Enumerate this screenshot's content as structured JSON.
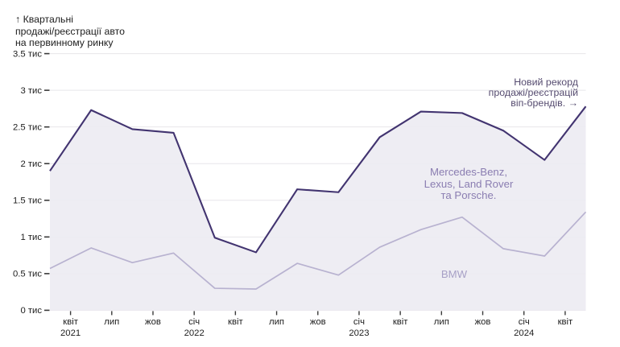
{
  "title": {
    "lines": [
      "↑ Квартальні",
      "продажі/реєстрації авто",
      "на первинному ринку"
    ]
  },
  "annotations": {
    "record": {
      "lines": [
        "Новий рекорд",
        "продажі/реєстрацій",
        "віп-брендів. →"
      ]
    },
    "series_labels": {
      "mercedes": {
        "lines": [
          "Mercedes-Benz,",
          "Lexus, Land Rover",
          "та Porsche."
        ]
      },
      "bmw": {
        "lines": [
          "BMW"
        ]
      }
    }
  },
  "chart_data": {
    "type": "area",
    "x_tick_labels": [
      {
        "label": "квіт",
        "year": "2021"
      },
      {
        "label": "лип"
      },
      {
        "label": "жов"
      },
      {
        "label": "січ",
        "year": "2022"
      },
      {
        "label": "квіт"
      },
      {
        "label": "лип"
      },
      {
        "label": "жов"
      },
      {
        "label": "січ",
        "year": "2023"
      },
      {
        "label": "квіт"
      },
      {
        "label": "лип"
      },
      {
        "label": "жов"
      },
      {
        "label": "січ",
        "year": "2024"
      },
      {
        "label": "квіт"
      }
    ],
    "y_tick_labels": [
      "0 тис",
      "0.5 тис",
      "1 тис",
      "1.5 тис",
      "2 тис",
      "2.5 тис",
      "3 тис",
      "3.5 тис"
    ],
    "y_tick_values": [
      0,
      0.5,
      1,
      1.5,
      2,
      2.5,
      3,
      3.5
    ],
    "ylim": [
      0,
      3.5
    ],
    "grid": "horizontal",
    "series": [
      {
        "name": "Mercedes-Benz, Lexus, Land Rover та Porsche.",
        "values": [
          1.9,
          2.73,
          2.47,
          2.42,
          0.99,
          0.79,
          1.65,
          1.61,
          2.36,
          2.71,
          2.69,
          2.45,
          2.05,
          2.78
        ],
        "color": "#423470",
        "area_fill": "#edecf2"
      },
      {
        "name": "BMW",
        "values": [
          0.57,
          0.85,
          0.65,
          0.78,
          0.3,
          0.29,
          0.64,
          0.48,
          0.86,
          1.1,
          1.27,
          0.84,
          0.74,
          1.34
        ],
        "color": "#b8b2d0",
        "area_fill": null
      }
    ],
    "colors": {
      "gridline": "#e7e6ea",
      "tick": "#3a3a3a",
      "axis_text": "#1d1d1d"
    }
  }
}
